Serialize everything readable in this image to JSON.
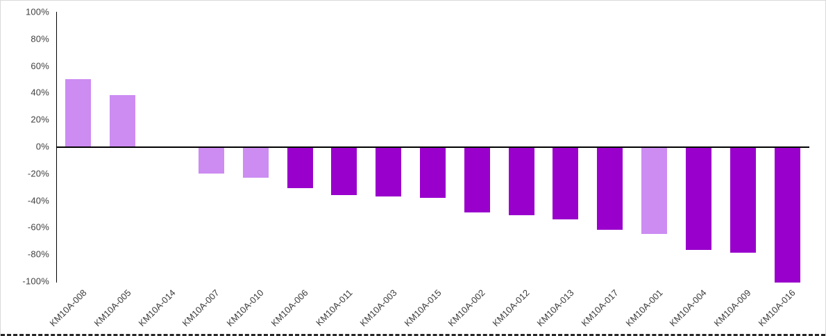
{
  "chart_data": {
    "type": "bar",
    "title": "",
    "xlabel": "",
    "ylabel": "",
    "categories": [
      "KM10A-008",
      "KM10A-005",
      "KM10A-014",
      "KM10A-007",
      "KM10A-010",
      "KM10A-006",
      "KM10A-011",
      "KM10A-003",
      "KM10A-015",
      "KM10A-002",
      "KM10A-012",
      "KM10A-013",
      "KM10A-017",
      "KM10A-001",
      "KM10A-004",
      "KM10A-009",
      "KM10A-016"
    ],
    "values": [
      50,
      38,
      0,
      -19,
      -22,
      -30,
      -35,
      -36,
      -37,
      -48,
      -50,
      -53,
      -61,
      -64,
      -76,
      -78,
      -100
    ],
    "bar_color_keys": [
      "light",
      "light",
      "none",
      "light",
      "light",
      "dark",
      "dark",
      "dark",
      "dark",
      "dark",
      "dark",
      "dark",
      "dark",
      "light",
      "dark",
      "dark",
      "dark"
    ],
    "colors": {
      "light": "#CC8CF2",
      "dark": "#9900CC"
    },
    "ylim": [
      -100,
      100
    ],
    "ytick_values": [
      100,
      80,
      60,
      40,
      20,
      0,
      -20,
      -40,
      -60,
      -80,
      -100
    ],
    "ytick_labels": [
      "100%",
      "80%",
      "60%",
      "40%",
      "20%",
      "0%",
      "-20%",
      "-40%",
      "-60%",
      "-80%",
      "-100%"
    ],
    "grid": false,
    "legend": "none"
  }
}
